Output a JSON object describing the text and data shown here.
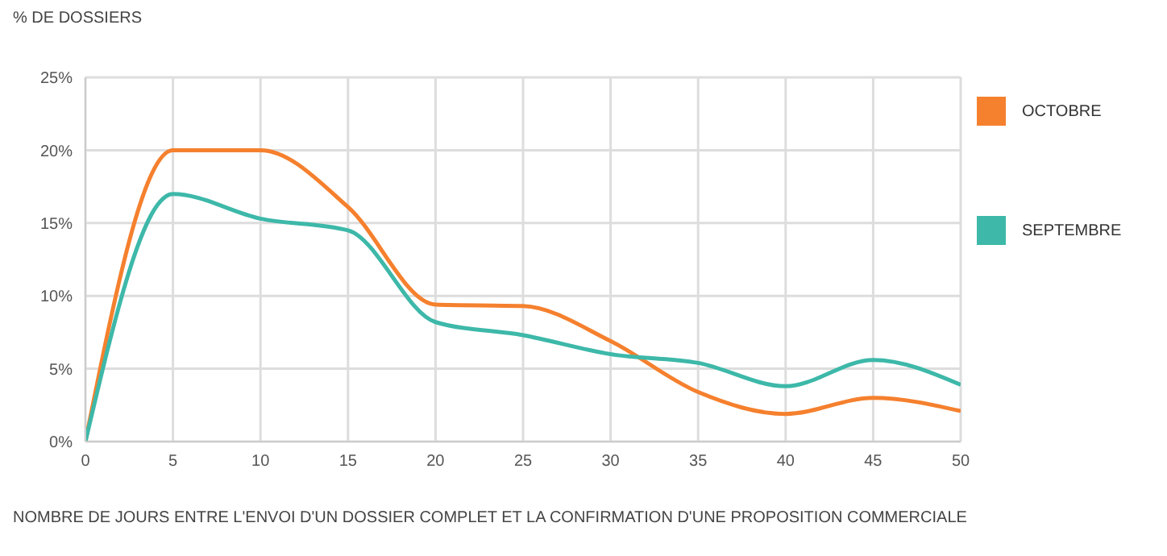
{
  "chart_data": {
    "type": "line",
    "ylabel": "% DE DOSSIERS",
    "xlabel": "NOMBRE DE JOURS ENTRE L'ENVOI D'UN DOSSIER COMPLET ET LA CONFIRMATION D'UNE PROPOSITION COMMERCIALE",
    "x": [
      0,
      5,
      10,
      15,
      20,
      25,
      30,
      35,
      40,
      45,
      50
    ],
    "series": [
      {
        "name": "OCTOBRE",
        "color": "#f5802e",
        "values": [
          0,
          20,
          20,
          16.1,
          9.4,
          9.3,
          6.9,
          3.4,
          1.9,
          3,
          2.1
        ]
      },
      {
        "name": "SEPTEMBRE",
        "color": "#3db8a9",
        "values": [
          0,
          17,
          15.3,
          14.5,
          8.2,
          7.3,
          6,
          5.4,
          3.8,
          5.6,
          3.9
        ]
      }
    ],
    "xlim": [
      0,
      50
    ],
    "xticks": [
      0,
      5,
      10,
      15,
      20,
      25,
      30,
      35,
      40,
      45,
      50
    ],
    "ylim": [
      0,
      25
    ],
    "yticks": [
      {
        "value": 0,
        "label": "0%"
      },
      {
        "value": 5,
        "label": "5%"
      },
      {
        "value": 10,
        "label": "10%"
      },
      {
        "value": 15,
        "label": "15%"
      },
      {
        "value": 20,
        "label": "20%"
      },
      {
        "value": 25,
        "label": "25%"
      }
    ],
    "grid": true,
    "legend": "right",
    "marker": "none",
    "line_style": "solid"
  }
}
